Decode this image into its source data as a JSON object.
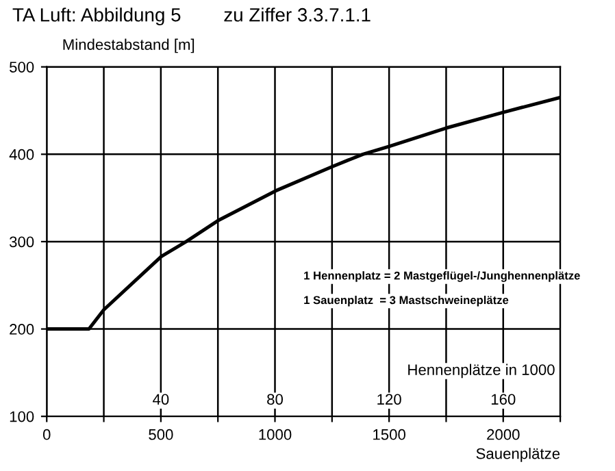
{
  "chart_data": {
    "type": "line",
    "title": "TA Luft: Abbildung 5        zu Ziffer 3.3.7.1.1",
    "ylabel": "Mindestabstand [m]",
    "xlabel": "Sauenplätze",
    "x2label": "Hennenplätze in 1000",
    "annotations": [
      "1 Hennenplatz = 2 Mastgeflügel-/Junghennenplätze",
      "1 Sauenplatz  = 3 Mastschweineplätze"
    ],
    "series": [
      {
        "color": "#000000",
        "x": [
          0,
          185,
          250,
          502,
          611,
          750,
          1002,
          1252,
          1385,
          1500,
          1750,
          2000,
          2250
        ],
        "values": [
          200,
          200,
          222,
          283,
          300,
          324,
          358,
          386,
          400,
          409,
          430,
          448,
          465
        ]
      }
    ],
    "xlim": [
      0,
      2250
    ],
    "ylim": [
      100,
      500
    ],
    "xticks": [
      0,
      {
        "value": 250,
        "label": null
      },
      500,
      {
        "value": 750,
        "label": null
      },
      1000,
      {
        "value": 1250,
        "label": null
      },
      1500,
      {
        "value": 1750,
        "label": null
      },
      2000,
      {
        "value": 2250,
        "label": null
      }
    ],
    "yticks": [
      100,
      200,
      300,
      400,
      500
    ],
    "x2lim": [
      0,
      180
    ],
    "x2ticks": [
      40,
      80,
      120,
      160
    ],
    "grid": true,
    "legend": false,
    "marker": "none",
    "line_style": "solid"
  }
}
